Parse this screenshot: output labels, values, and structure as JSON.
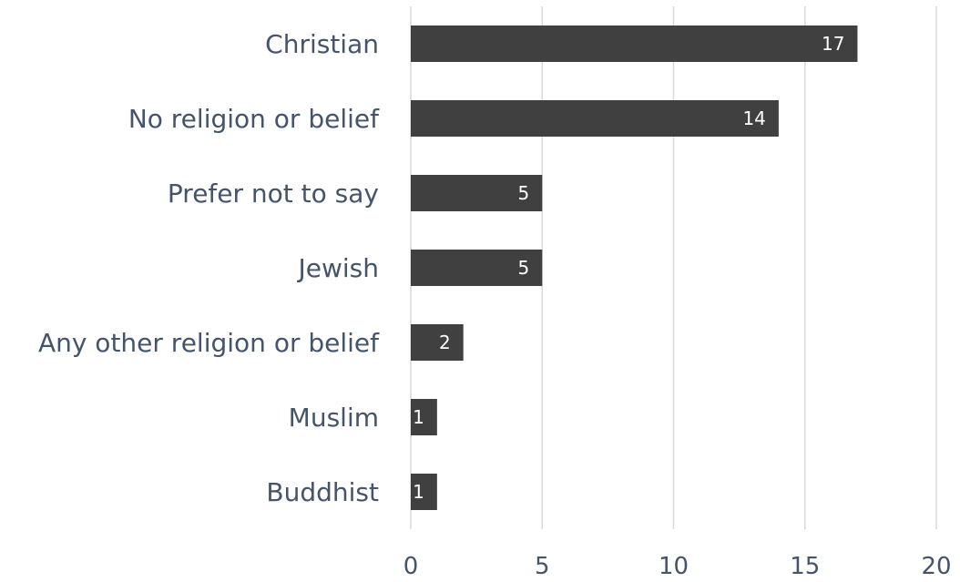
{
  "chart_data": {
    "type": "bar",
    "orientation": "horizontal",
    "categories": [
      "Christian",
      "No religion or belief",
      "Prefer not to say",
      "Jewish",
      "Any other religion or belief",
      "Muslim",
      "Buddhist"
    ],
    "values": [
      17,
      14,
      5,
      5,
      2,
      1,
      1
    ],
    "xlim": [
      0,
      20
    ],
    "xticks": [
      0,
      5,
      10,
      15,
      20
    ],
    "grid": true,
    "data_labels": true,
    "bar_color": "#404040",
    "label_color": "#44546A"
  }
}
